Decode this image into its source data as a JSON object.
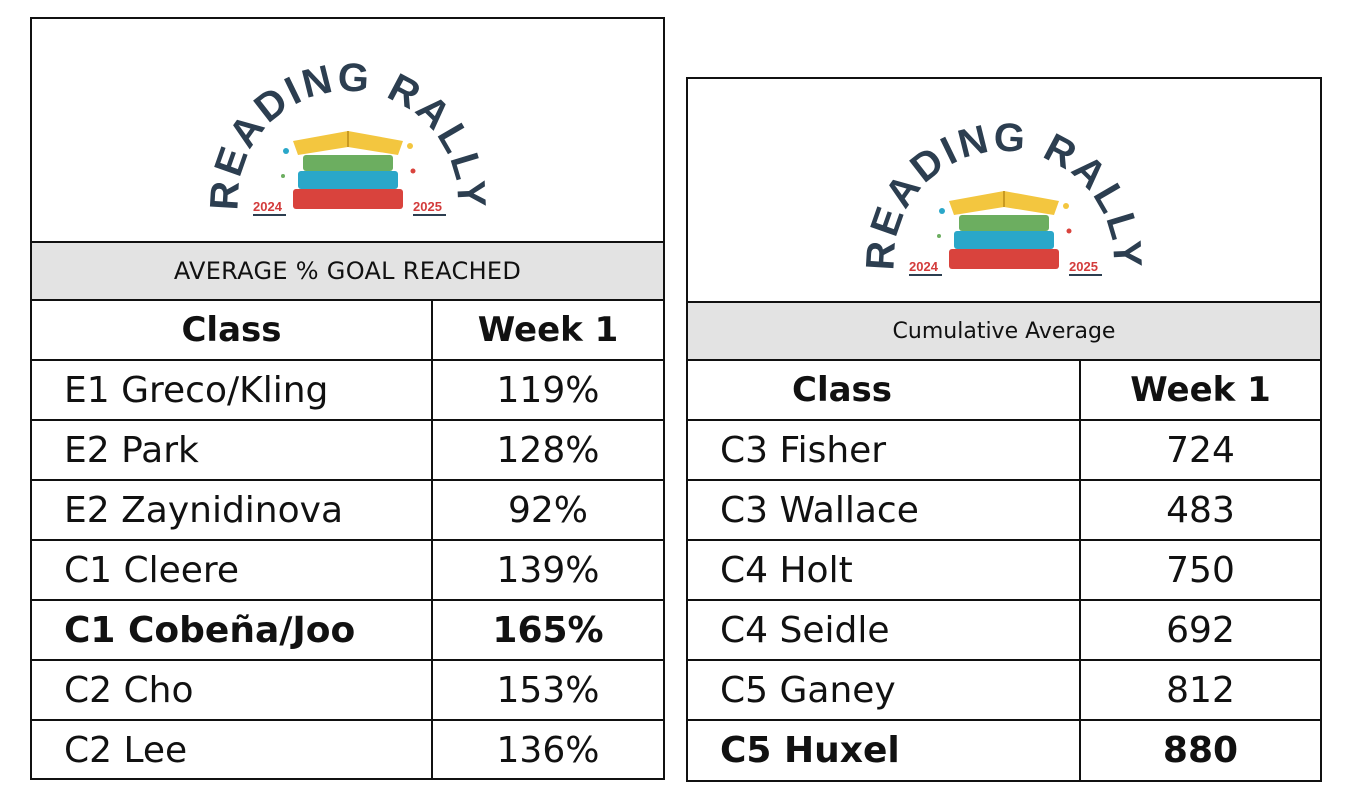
{
  "left": {
    "logo": {
      "title": "READING RALLY",
      "year_left": "2024",
      "year_right": "2025"
    },
    "subtitle": "AVERAGE % GOAL REACHED",
    "headers": [
      "Class",
      "Week 1"
    ],
    "rows": [
      {
        "class": "E1 Greco/Kling",
        "week1": "119%"
      },
      {
        "class": "E2 Park",
        "week1": "128%"
      },
      {
        "class": "E2 Zaynidinova",
        "week1": "92%"
      },
      {
        "class": "C1 Cleere",
        "week1": "139%"
      },
      {
        "class": "C1 Cobeña/Joo",
        "week1": "165%",
        "highlight": true
      },
      {
        "class": "C2 Cho",
        "week1": "153%"
      },
      {
        "class": "C2 Lee",
        "week1": "136%"
      }
    ]
  },
  "right": {
    "logo": {
      "title": "READING RALLY",
      "year_left": "2024",
      "year_right": "2025"
    },
    "subtitle": "Cumulative Average",
    "headers": [
      "Class",
      "Week 1"
    ],
    "rows": [
      {
        "class": "C3 Fisher",
        "week1": "724"
      },
      {
        "class": "C3 Wallace",
        "week1": "483"
      },
      {
        "class": "C4 Holt",
        "week1": "750"
      },
      {
        "class": "C4 Seidle",
        "week1": "692"
      },
      {
        "class": "C5 Ganey",
        "week1": "812"
      },
      {
        "class": "C5 Huxel",
        "week1": "880",
        "highlight": true
      }
    ]
  },
  "colors": {
    "title_text": "#2c3e50",
    "year_text": "#d33c3c",
    "header_band": "#e3e3e3"
  }
}
